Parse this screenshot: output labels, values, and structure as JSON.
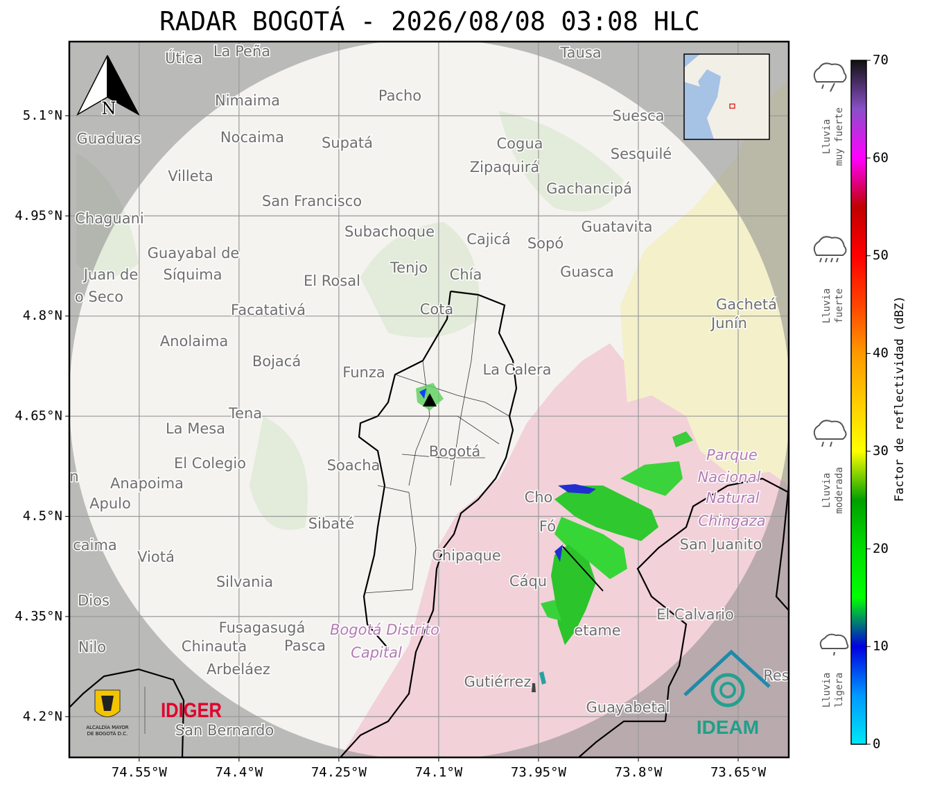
{
  "title": "RADAR BOGOTÁ - 2026/08/08 03:08 HLC",
  "north": "N",
  "map": {
    "lat_range": [
      4.139,
      5.211
    ],
    "lon_range": [
      -74.655,
      -73.574
    ],
    "lat_ticks": [
      {
        "value": 5.1,
        "label": "5.1°N"
      },
      {
        "value": 4.95,
        "label": "4.95°N"
      },
      {
        "value": 4.8,
        "label": "4.8°N"
      },
      {
        "value": 4.65,
        "label": "4.65°N"
      },
      {
        "value": 4.5,
        "label": "4.5°N"
      },
      {
        "value": 4.35,
        "label": "4.35°N"
      },
      {
        "value": 4.2,
        "label": "4.2°N"
      }
    ],
    "lon_ticks": [
      {
        "value": -74.55,
        "label": "74.55°W"
      },
      {
        "value": -74.4,
        "label": "74.4°W"
      },
      {
        "value": -74.25,
        "label": "74.25°W"
      },
      {
        "value": -74.1,
        "label": "74.1°W"
      },
      {
        "value": -73.95,
        "label": "73.95°W"
      },
      {
        "value": -73.8,
        "label": "73.8°W"
      },
      {
        "value": -73.65,
        "label": "73.65°W"
      }
    ],
    "places": [
      "La Peña",
      "Útica",
      "Tausa",
      "Pacho",
      "Nimaima",
      "Guaduas",
      "Nocaima",
      "Supatá",
      "Cogua",
      "Suesca",
      "Sesquilé",
      "Zipaquirá",
      "Villeta",
      "Gachancipá",
      "San Francisco",
      "Chaguani",
      "Guatavita",
      "Subachoque",
      "Cajicá",
      "Sopó",
      "Guayabal de",
      "Síquima",
      "Tenjo",
      "Juan de",
      "Chía",
      "El Rosal",
      "Guasca",
      "o Seco",
      "Facatativá",
      "Gachetá",
      "Cota",
      "Junín",
      "Anolaima",
      "Bojacá",
      "Funza",
      "La Calera",
      "Tena",
      "La Mesa",
      "Bogotá",
      "Parque",
      "El Colegio",
      "Soacha",
      "Nacional",
      "Anapoima",
      "Natural",
      "Apulo",
      "Cho",
      "Chingaza",
      "Sibaté",
      "Fó",
      "San Juanito",
      "caima",
      "Viotá",
      "Chipaque",
      "Cáqu",
      "Silvania",
      "Dios",
      "El Calvario",
      "Fusagasugá",
      "Bogotá Distrito",
      "Nilo",
      "Chinauta",
      "Pasca",
      "etame",
      "Capital",
      "Arbeláez",
      "Gutiérrez",
      "Res",
      "Guayabetal",
      "San Bernardo",
      "n"
    ]
  },
  "colorbar": {
    "label": "Factor de reflectividad (dBZ)",
    "range": [
      0,
      70
    ],
    "ticks": [
      0,
      10,
      20,
      30,
      40,
      50,
      60,
      70
    ],
    "colors": [
      "#00e8f5",
      "#0099ff",
      "#0000e0",
      "#00ff00",
      "#00dd00",
      "#00a000",
      "#ffff00",
      "#ffcc00",
      "#ff9900",
      "#ff4400",
      "#ff0000",
      "#c00000",
      "#ff00ff",
      "#8a50c8",
      "#111111"
    ]
  },
  "rain_classes": [
    [
      "Lluvia",
      "muy fuerte"
    ],
    [
      "Lluvia",
      "fuerte"
    ],
    [
      "Lluvia",
      "moderada"
    ],
    [
      "Lluvia",
      "ligera"
    ]
  ],
  "logos": {
    "alcaldia": [
      "ALCALDÍA MAYOR",
      "DE BOGOTÁ D.C."
    ],
    "idiger": "IDIGER",
    "ideam": "IDEAM"
  }
}
